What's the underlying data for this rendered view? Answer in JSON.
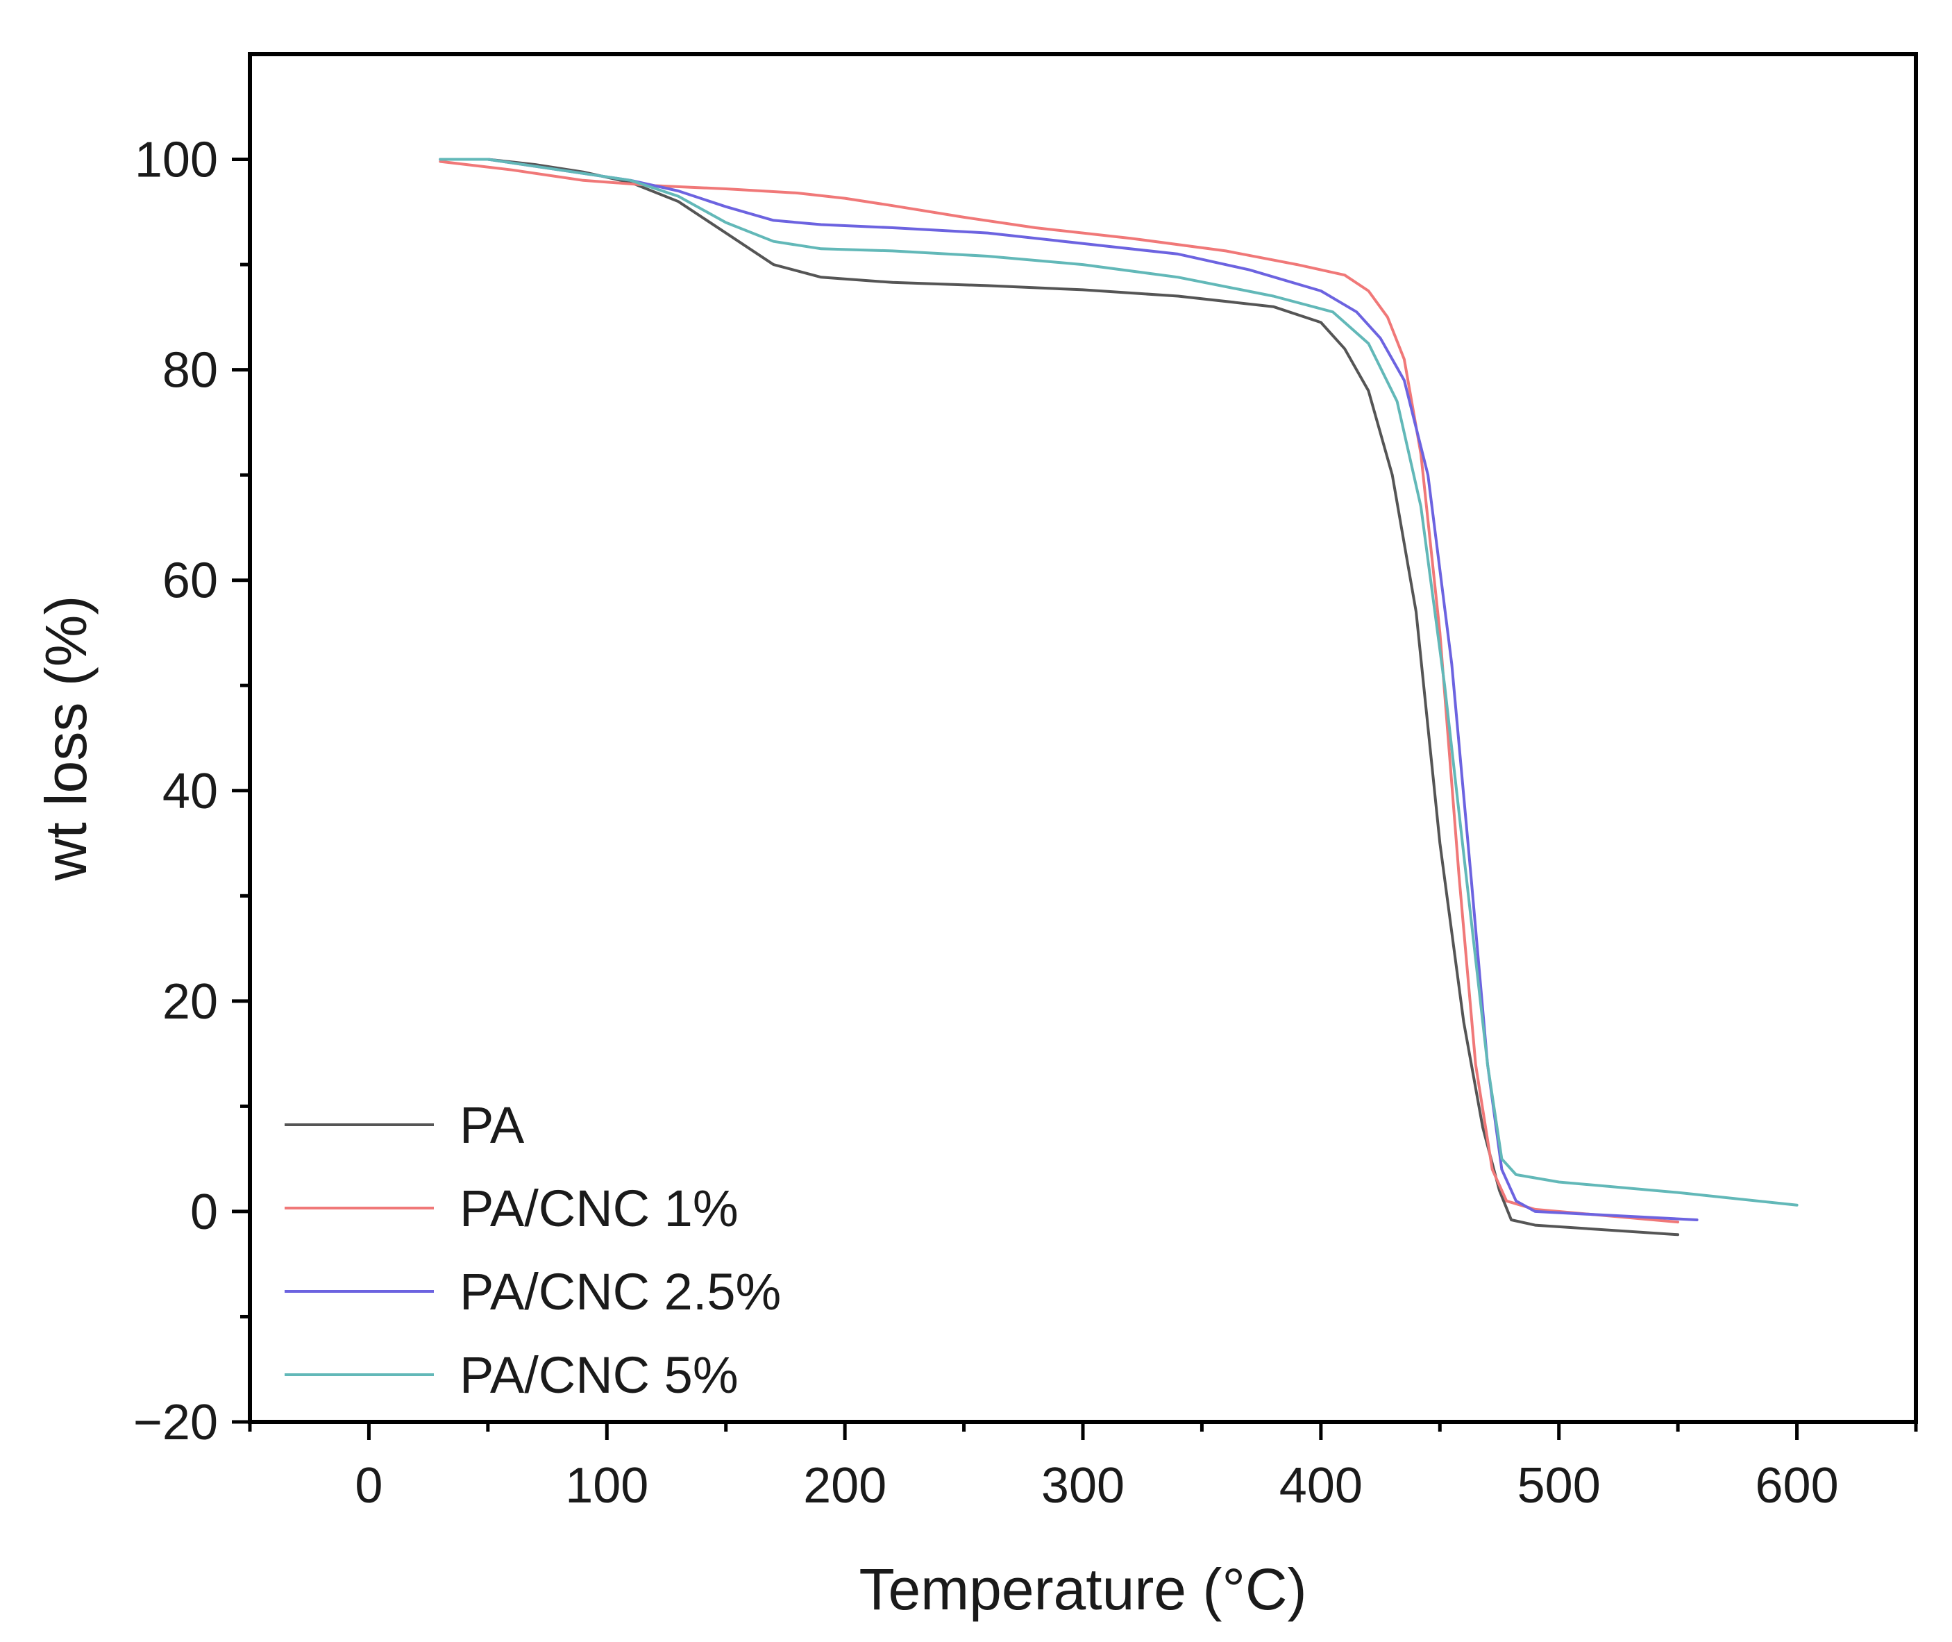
{
  "chart_data": {
    "type": "line",
    "title": "",
    "xlabel": "Temperature (°C)",
    "ylabel": "wt loss (%)",
    "xlim": [
      -50,
      650
    ],
    "ylim": [
      -20,
      110
    ],
    "xticks": [
      0,
      100,
      200,
      300,
      400,
      500,
      600
    ],
    "xtick_labels": [
      "0",
      "100",
      "200",
      "300",
      "400",
      "500",
      "600"
    ],
    "xminor": [
      -50,
      50,
      150,
      250,
      350,
      450,
      550,
      650
    ],
    "yticks": [
      -20,
      0,
      20,
      40,
      60,
      80,
      100
    ],
    "ytick_labels": [
      "−20",
      "0",
      "20",
      "40",
      "60",
      "80",
      "100"
    ],
    "yminor": [
      -10,
      10,
      30,
      50,
      70,
      90
    ],
    "grid": false,
    "legend_position": "bottom-left",
    "series": [
      {
        "name": "PA",
        "color": "#555555",
        "points": [
          [
            30,
            100
          ],
          [
            50,
            100
          ],
          [
            70,
            99.5
          ],
          [
            90,
            98.8
          ],
          [
            110,
            97.8
          ],
          [
            130,
            96
          ],
          [
            150,
            93
          ],
          [
            170,
            90
          ],
          [
            190,
            88.8
          ],
          [
            220,
            88.3
          ],
          [
            260,
            88
          ],
          [
            300,
            87.6
          ],
          [
            340,
            87
          ],
          [
            380,
            86
          ],
          [
            400,
            84.5
          ],
          [
            410,
            82
          ],
          [
            420,
            78
          ],
          [
            430,
            70
          ],
          [
            440,
            57
          ],
          [
            450,
            35
          ],
          [
            460,
            18
          ],
          [
            468,
            8
          ],
          [
            475,
            2
          ],
          [
            480,
            -0.8
          ],
          [
            490,
            -1.3
          ],
          [
            550,
            -2.2
          ]
        ]
      },
      {
        "name": "PA/CNC 1%",
        "color": "#f07878",
        "points": [
          [
            30,
            99.8
          ],
          [
            60,
            99
          ],
          [
            90,
            98
          ],
          [
            120,
            97.5
          ],
          [
            150,
            97.2
          ],
          [
            180,
            96.8
          ],
          [
            200,
            96.3
          ],
          [
            220,
            95.6
          ],
          [
            250,
            94.5
          ],
          [
            280,
            93.5
          ],
          [
            320,
            92.5
          ],
          [
            360,
            91.3
          ],
          [
            390,
            90
          ],
          [
            410,
            89
          ],
          [
            420,
            87.5
          ],
          [
            428,
            85
          ],
          [
            435,
            81
          ],
          [
            442,
            72
          ],
          [
            450,
            55
          ],
          [
            458,
            32
          ],
          [
            465,
            14
          ],
          [
            472,
            4
          ],
          [
            478,
            1
          ],
          [
            490,
            0.2
          ],
          [
            550,
            -1
          ]
        ]
      },
      {
        "name": "PA/CNC 2.5%",
        "color": "#6c63e0",
        "points": [
          [
            30,
            100
          ],
          [
            50,
            100
          ],
          [
            80,
            99
          ],
          [
            110,
            98
          ],
          [
            130,
            97
          ],
          [
            150,
            95.5
          ],
          [
            170,
            94.2
          ],
          [
            190,
            93.8
          ],
          [
            220,
            93.5
          ],
          [
            260,
            93
          ],
          [
            300,
            92
          ],
          [
            340,
            91
          ],
          [
            370,
            89.5
          ],
          [
            400,
            87.5
          ],
          [
            415,
            85.5
          ],
          [
            425,
            83
          ],
          [
            435,
            79
          ],
          [
            445,
            70
          ],
          [
            455,
            52
          ],
          [
            463,
            32
          ],
          [
            470,
            14
          ],
          [
            476,
            4
          ],
          [
            482,
            1
          ],
          [
            490,
            0
          ],
          [
            558,
            -0.8
          ]
        ]
      },
      {
        "name": "PA/CNC 5%",
        "color": "#62b8b8",
        "points": [
          [
            30,
            100
          ],
          [
            50,
            100
          ],
          [
            80,
            99
          ],
          [
            110,
            98
          ],
          [
            130,
            96.5
          ],
          [
            150,
            94
          ],
          [
            170,
            92.2
          ],
          [
            190,
            91.5
          ],
          [
            220,
            91.3
          ],
          [
            260,
            90.8
          ],
          [
            300,
            90
          ],
          [
            340,
            88.8
          ],
          [
            380,
            87
          ],
          [
            405,
            85.5
          ],
          [
            420,
            82.5
          ],
          [
            432,
            77
          ],
          [
            442,
            67
          ],
          [
            452,
            50
          ],
          [
            462,
            30
          ],
          [
            470,
            14
          ],
          [
            476,
            5
          ],
          [
            482,
            3.5
          ],
          [
            500,
            2.8
          ],
          [
            550,
            1.8
          ],
          [
            600,
            0.6
          ]
        ]
      }
    ]
  }
}
